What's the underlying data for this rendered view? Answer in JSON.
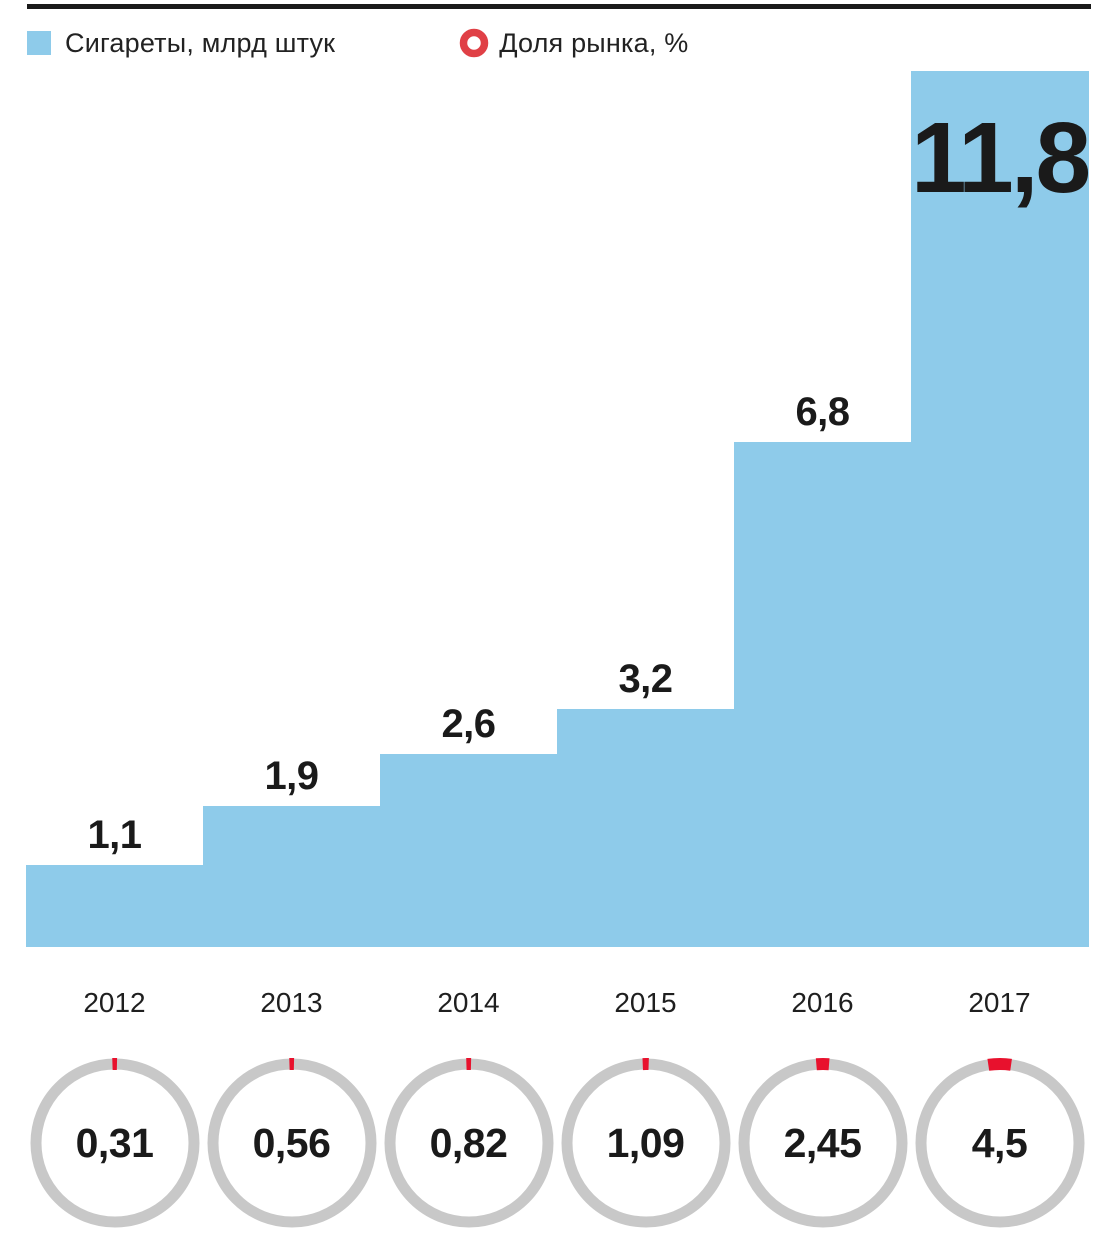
{
  "colors": {
    "bar": "#8ECBEA",
    "rule": "#1A1A1A",
    "legend_ring": "#E04046",
    "ring_gray": "#C8C8C8",
    "share_red": "#E8112D",
    "text": "#1A1A1A"
  },
  "legend": {
    "items": [
      {
        "swatch": "square",
        "label": "Сигареты, млрд штук"
      },
      {
        "swatch": "ring",
        "label": "Доля рынка, %"
      }
    ]
  },
  "chart_data": {
    "type": "bar",
    "categories": [
      "2012",
      "2013",
      "2014",
      "2015",
      "2016",
      "2017"
    ],
    "series": [
      {
        "name": "Сигареты, млрд штук",
        "values": [
          1.1,
          1.9,
          2.6,
          3.2,
          6.8,
          11.8
        ],
        "labels": [
          "1,1",
          "1,9",
          "2,6",
          "3,2",
          "6,8",
          "11,8"
        ]
      },
      {
        "name": "Доля рынка, %",
        "values": [
          0.31,
          0.56,
          0.82,
          1.09,
          2.45,
          4.5
        ],
        "labels": [
          "0,31",
          "0,56",
          "0,82",
          "1,09",
          "2,45",
          "4,5"
        ]
      }
    ],
    "ylim": [
      0,
      11.8
    ],
    "grid": false,
    "legend_position": "top",
    "bar_style": "staircase-contiguous",
    "share_style": "donut-ring-arc"
  }
}
